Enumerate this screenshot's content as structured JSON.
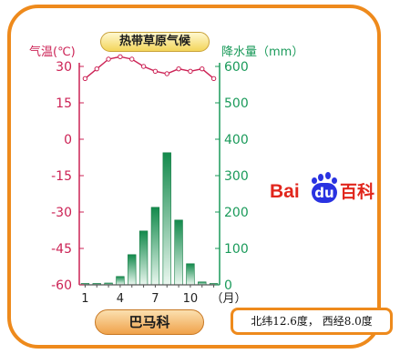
{
  "chart_data": {
    "type": "bar+line",
    "title": "热带草原气候",
    "months": [
      1,
      2,
      3,
      4,
      5,
      6,
      7,
      8,
      9,
      10,
      11,
      12
    ],
    "x_tick_labels": [
      "1",
      "4",
      "7",
      "10",
      "（月）"
    ],
    "temperature": {
      "axis_label": "气温(℃)",
      "ylim": [
        -60,
        30
      ],
      "ticks": [
        30,
        15,
        0,
        -15,
        -30,
        -45,
        -60
      ],
      "values": [
        25,
        29,
        33,
        34,
        33,
        30,
        28,
        27,
        29,
        28,
        29,
        25
      ],
      "color": "#cc2255"
    },
    "precipitation": {
      "axis_label": "降水量（mm）",
      "ylim": [
        0,
        600
      ],
      "ticks": [
        600,
        500,
        400,
        300,
        200,
        100,
        0
      ],
      "values": [
        3,
        0,
        5,
        23,
        83,
        148,
        213,
        363,
        178,
        58,
        8,
        0
      ],
      "color": "#1a9a5a"
    },
    "city": "巴马科",
    "coordinates": "北纬12.6度，  西经8.0度"
  },
  "logo": {
    "text_latin": "Bai",
    "text_du": "du",
    "text_cn": "百科"
  }
}
